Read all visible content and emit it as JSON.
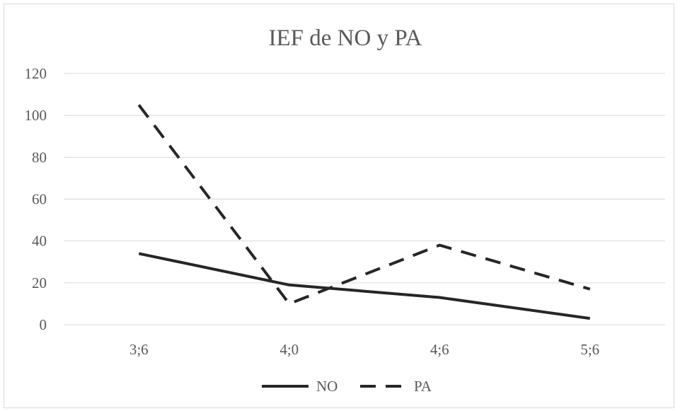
{
  "chart_data": {
    "type": "line",
    "title": "IEF de NO y PA",
    "xlabel": "",
    "ylabel": "",
    "categories": [
      "3;6",
      "4;0",
      "4;6",
      "5;6"
    ],
    "ylim": [
      0,
      120
    ],
    "yticks": [
      "0",
      "20",
      "40",
      "60",
      "80",
      "100",
      "120"
    ],
    "grid": true,
    "legend_position": "bottom",
    "series": [
      {
        "name": "NO",
        "values": [
          34,
          19,
          13,
          3
        ],
        "color": "#262626",
        "dash": "solid"
      },
      {
        "name": "PA",
        "values": [
          105,
          10,
          38,
          17
        ],
        "color": "#262626",
        "dash": "dashed"
      }
    ]
  }
}
